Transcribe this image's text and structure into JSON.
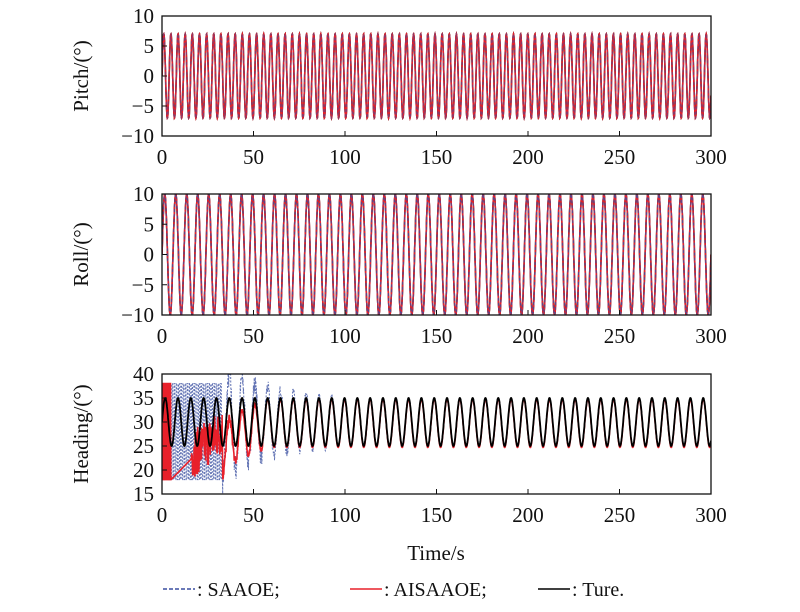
{
  "chart_data": [
    {
      "type": "line",
      "ylabel": "Pitch/(°)",
      "xlim": [
        0,
        300
      ],
      "ylim": [
        -10,
        10
      ],
      "xticks": [
        "0",
        "50",
        "100",
        "150",
        "200",
        "250",
        "300"
      ],
      "yticks": [
        "10",
        "5",
        "0",
        "−5",
        "−10"
      ],
      "ytick_values": [
        10,
        5,
        0,
        -5,
        -10
      ],
      "signal": {
        "offset": 0,
        "amplitude": 7,
        "period_s": 3.9
      },
      "series": [
        {
          "name": "SAAOE",
          "color": "#3a4fa0",
          "style": "dashed"
        },
        {
          "name": "AISAAOE",
          "color": "#e8202a",
          "style": "solid"
        },
        {
          "name": "Ture",
          "color": "#000000",
          "style": "solid"
        }
      ]
    },
    {
      "type": "line",
      "ylabel": "Roll/(°)",
      "xlim": [
        0,
        300
      ],
      "ylim": [
        -10,
        10
      ],
      "xticks": [
        "0",
        "50",
        "100",
        "150",
        "200",
        "250",
        "300"
      ],
      "yticks": [
        "10",
        "5",
        "0",
        "−5",
        "−10"
      ],
      "ytick_values": [
        10,
        5,
        0,
        -5,
        -10
      ],
      "signal": {
        "offset": 0,
        "amplitude": 10,
        "period_s": 6
      },
      "series": [
        {
          "name": "SAAOE",
          "color": "#3a4fa0",
          "style": "dashed"
        },
        {
          "name": "AISAAOE",
          "color": "#e8202a",
          "style": "solid"
        },
        {
          "name": "Ture",
          "color": "#000000",
          "style": "solid"
        }
      ]
    },
    {
      "type": "line",
      "ylabel": "Heading/(°)",
      "xlabel": "Time/s",
      "xlim": [
        0,
        300
      ],
      "ylim": [
        15,
        40
      ],
      "xticks": [
        "0",
        "50",
        "100",
        "150",
        "200",
        "250",
        "300"
      ],
      "yticks": [
        "40",
        "35",
        "30",
        "25",
        "20",
        "15"
      ],
      "ytick_values": [
        40,
        35,
        30,
        25,
        20,
        15
      ],
      "signal": {
        "offset": 30,
        "amplitude": 5,
        "period_s": 7
      },
      "transient": {
        "SAAOE_converge_s": 95,
        "AISAAOE_converge_s": 55,
        "band": [
          18,
          38
        ]
      },
      "series": [
        {
          "name": "SAAOE",
          "color": "#3a4fa0",
          "style": "dashed"
        },
        {
          "name": "AISAAOE",
          "color": "#e8202a",
          "style": "solid"
        },
        {
          "name": "Ture",
          "color": "#000000",
          "style": "solid"
        }
      ]
    }
  ],
  "legend": [
    {
      "label": ": SAAOE;",
      "color": "#3a4fa0",
      "style": "dashed"
    },
    {
      "label": ": AISAAOE;",
      "color": "#e8202a",
      "style": "solid"
    },
    {
      "label": ": Ture.",
      "color": "#000000",
      "style": "solid"
    }
  ]
}
